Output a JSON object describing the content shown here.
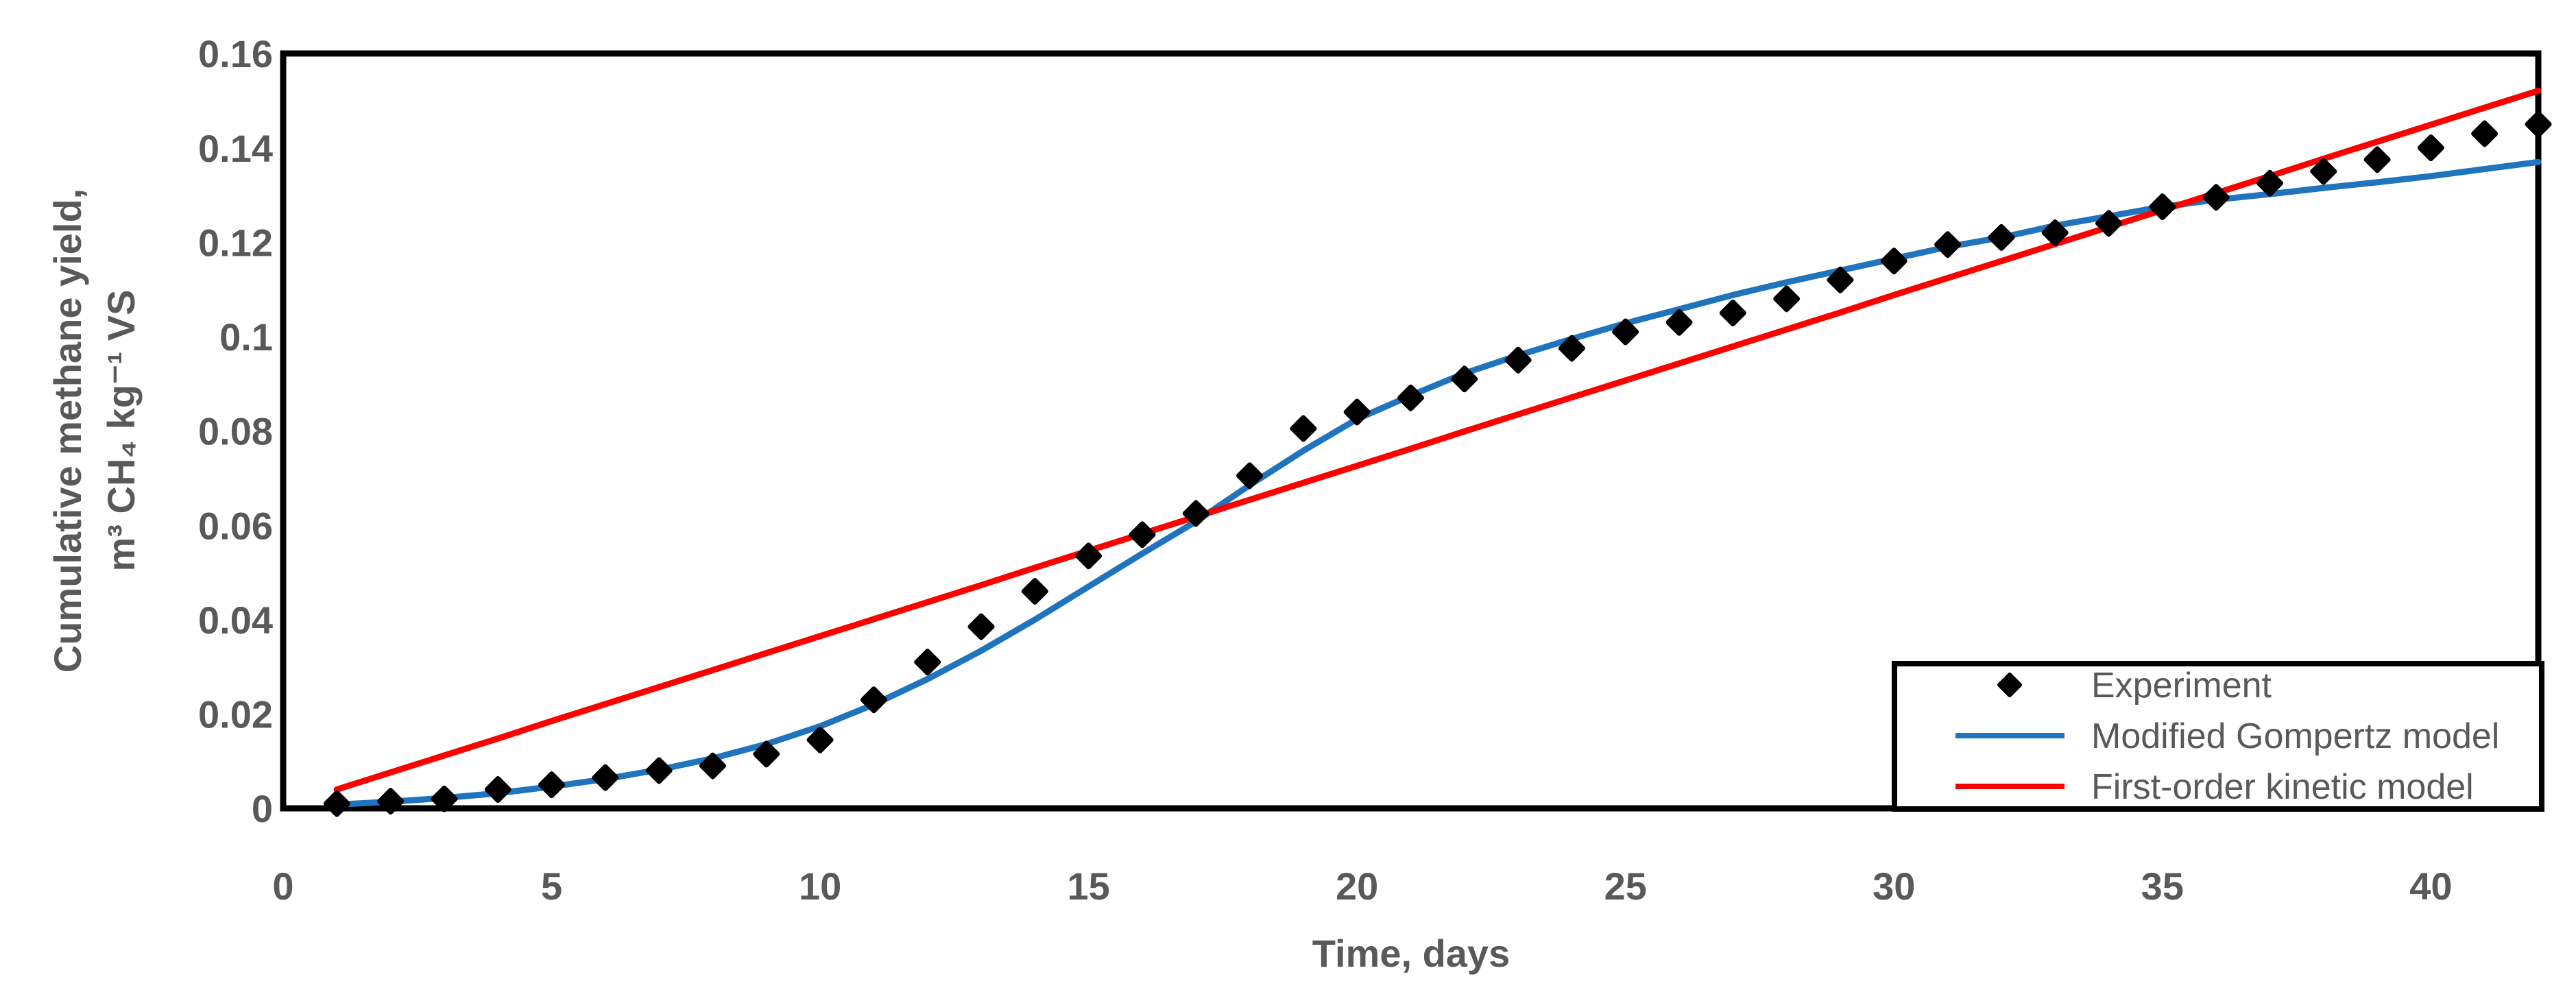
{
  "page": {
    "background": "#FFFFFF"
  },
  "chart_data": {
    "type": "scatter",
    "title": "",
    "xlabel": "Time, days",
    "ylabel_line1": "Cumulative methane yield,",
    "ylabel_line2": "m³ CH₄ kg⁻¹ VS",
    "xlim": [
      0,
      42
    ],
    "ylim": [
      0,
      0.16
    ],
    "x_tick_values": [
      0,
      5,
      10,
      15,
      20,
      25,
      30,
      35,
      40
    ],
    "x_tick_labels": [
      "0",
      "5",
      "10",
      "15",
      "20",
      "25",
      "30",
      "35",
      "40"
    ],
    "y_tick_values": [
      0,
      0.02,
      0.04,
      0.06,
      0.08,
      0.1,
      0.12,
      0.14,
      0.16
    ],
    "y_tick_labels": [
      "0",
      "0.02",
      "0.04",
      "0.06",
      "0.08",
      "0.1",
      "0.12",
      "0.14",
      "0.16"
    ],
    "grid": false,
    "legend_position": "inside-bottom-right",
    "axis_text_color": "#595959",
    "border_color": "#000000",
    "background_color": "#FFFFFF",
    "x": [
      1,
      2,
      3,
      4,
      5,
      6,
      7,
      8,
      9,
      10,
      11,
      12,
      13,
      14,
      15,
      16,
      17,
      18,
      19,
      20,
      21,
      22,
      23,
      24,
      25,
      26,
      27,
      28,
      29,
      30,
      31,
      32,
      33,
      34,
      35,
      36,
      37,
      38,
      39,
      40,
      41,
      42
    ],
    "series": [
      {
        "name": "Experiment",
        "type": "scatter",
        "marker": "diamond",
        "color": "#000000",
        "values": [
          0.001,
          0.0015,
          0.002,
          0.004,
          0.005,
          0.0065,
          0.008,
          0.009,
          0.0115,
          0.0145,
          0.023,
          0.031,
          0.0385,
          0.046,
          0.0535,
          0.058,
          0.0625,
          0.0705,
          0.0805,
          0.084,
          0.087,
          0.091,
          0.095,
          0.0975,
          0.101,
          0.103,
          0.105,
          0.108,
          0.112,
          0.116,
          0.1195,
          0.121,
          0.122,
          0.124,
          0.1275,
          0.1295,
          0.1325,
          0.135,
          0.1375,
          0.14,
          0.143,
          0.145
        ]
      },
      {
        "name": "Modified Gompertz model",
        "type": "line",
        "color": "#1F74BD",
        "values": [
          0.0008,
          0.0014,
          0.0022,
          0.0032,
          0.0046,
          0.0062,
          0.0082,
          0.0106,
          0.0136,
          0.0174,
          0.022,
          0.0274,
          0.0334,
          0.04,
          0.047,
          0.054,
          0.0608,
          0.0685,
          0.0758,
          0.0825,
          0.0875,
          0.0922,
          0.096,
          0.0995,
          0.1028,
          0.1058,
          0.1088,
          0.1115,
          0.114,
          0.1165,
          0.119,
          0.121,
          0.1235,
          0.1255,
          0.1275,
          0.129,
          0.1302,
          0.1315,
          0.1327,
          0.134,
          0.1355,
          0.137
        ]
      },
      {
        "name": "First-order kinetic model",
        "type": "line",
        "color": "#FF0000",
        "values": [
          0.004,
          0.0076,
          0.0112,
          0.0148,
          0.0185,
          0.0221,
          0.0257,
          0.0293,
          0.0329,
          0.0365,
          0.0401,
          0.0437,
          0.0473,
          0.051,
          0.0546,
          0.0582,
          0.0618,
          0.0654,
          0.069,
          0.0726,
          0.0762,
          0.0799,
          0.0835,
          0.0871,
          0.0907,
          0.0943,
          0.0979,
          0.1015,
          0.1051,
          0.1088,
          0.1124,
          0.116,
          0.1196,
          0.1232,
          0.1268,
          0.1304,
          0.134,
          0.1377,
          0.1413,
          0.1449,
          0.1485,
          0.1521
        ]
      }
    ]
  }
}
